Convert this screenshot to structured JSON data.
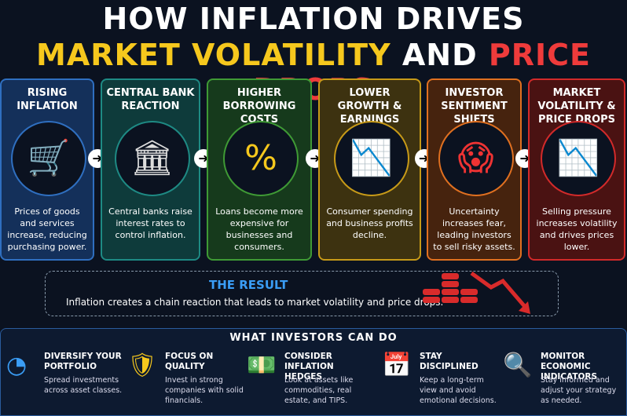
{
  "header": {
    "title_line1": "HOW INFLATION DRIVES",
    "title_part1": "MARKET VOLATILITY",
    "title_part2": "AND",
    "title_part3": "PRICE DROPS"
  },
  "steps": [
    {
      "title": "RISING INFLATION",
      "description": "Prices of goods and services increase, reducing purchasing power."
    },
    {
      "title": "CENTRAL BANK REACTION",
      "description": "Central banks raise interest rates to control inflation."
    },
    {
      "title": "HIGHER BORROWING COSTS",
      "description": "Loans become more expensive for businesses and consumers."
    },
    {
      "title": "LOWER GROWTH & EARNINGS",
      "description": "Consumer spending and business profits decline."
    },
    {
      "title": "INVESTOR SENTIMENT SHIFTS",
      "description": "Uncertainty increases fear, leading investors to sell risky assets."
    },
    {
      "title": "MARKET VOLATILITY & PRICE DROPS",
      "description": "Selling pressure increases volatility and drives prices lower."
    }
  ],
  "result": {
    "title": "THE RESULT",
    "text": "Inflation creates a chain reaction that leads to market volatility and price drops."
  },
  "investors": {
    "title": "WHAT INVESTORS CAN DO",
    "items": [
      {
        "title": "DIVERSIFY YOUR PORTFOLIO",
        "text": "Spread investments across asset classes."
      },
      {
        "title": "FOCUS ON QUALITY",
        "text": "Invest in strong companies with solid financials."
      },
      {
        "title": "CONSIDER INFLATION HEDGES",
        "text": "Look at assets like commodities, real estate, and TIPS."
      },
      {
        "title": "STAY DISCIPLINED",
        "text": "Keep a long-term view and avoid emotional decisions."
      },
      {
        "title": "MONITOR ECONOMIC INDICATORS",
        "text": "Stay informed and adjust your strategy as needed."
      }
    ]
  }
}
